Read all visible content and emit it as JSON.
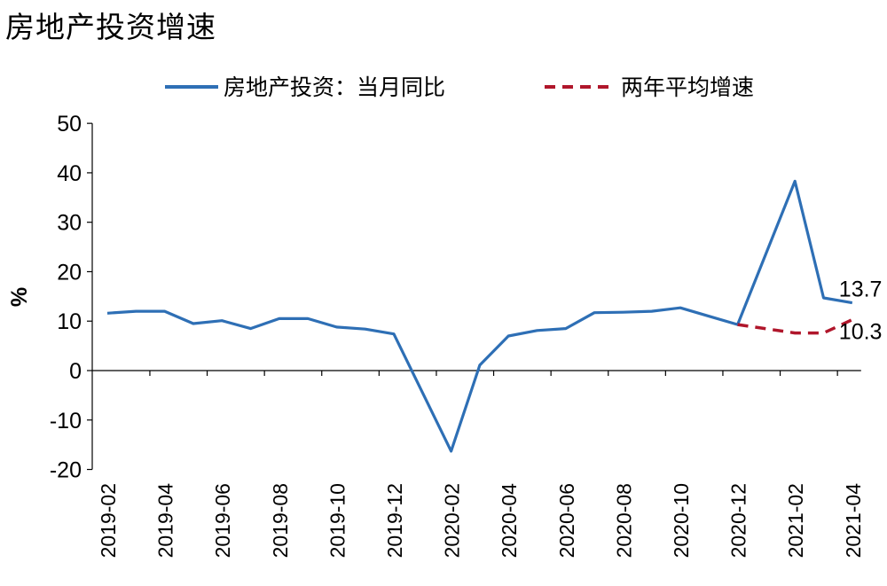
{
  "chart_data": {
    "type": "line",
    "title": "房地产投资增速",
    "ylabel": "%",
    "ylim": [
      -20,
      50
    ],
    "yticks": [
      -20,
      -10,
      0,
      10,
      20,
      30,
      40,
      50
    ],
    "x": [
      "2019-02",
      "2019-03",
      "2019-04",
      "2019-05",
      "2019-06",
      "2019-07",
      "2019-08",
      "2019-09",
      "2019-10",
      "2019-11",
      "2019-12",
      "2020-01",
      "2020-02",
      "2020-03",
      "2020-04",
      "2020-05",
      "2020-06",
      "2020-07",
      "2020-08",
      "2020-09",
      "2020-10",
      "2020-11",
      "2020-12",
      "2021-01",
      "2021-02",
      "2021-03",
      "2021-04"
    ],
    "xtick_labels": [
      "2019-02",
      "2019-04",
      "2019-06",
      "2019-08",
      "2019-10",
      "2019-12",
      "2020-02",
      "2020-04",
      "2020-06",
      "2020-08",
      "2020-10",
      "2020-12",
      "2021-02",
      "2021-04"
    ],
    "series": [
      {
        "name": "房地产投资：当月同比",
        "color": "#2e6fb5",
        "style": "solid",
        "values": [
          11.6,
          12.0,
          12.0,
          9.5,
          10.1,
          8.5,
          10.5,
          10.5,
          8.8,
          8.4,
          7.4,
          null,
          -16.3,
          1.1,
          7.0,
          8.1,
          8.5,
          11.7,
          11.8,
          12.0,
          12.7,
          11.0,
          9.3,
          null,
          38.3,
          14.7,
          13.7
        ]
      },
      {
        "name": "两年平均增速",
        "color": "#b0162b",
        "style": "dashed",
        "values": [
          null,
          null,
          null,
          null,
          null,
          null,
          null,
          null,
          null,
          null,
          null,
          null,
          null,
          null,
          null,
          null,
          null,
          null,
          null,
          null,
          null,
          null,
          9.3,
          null,
          7.6,
          7.6,
          10.3
        ]
      }
    ],
    "annotations": [
      {
        "label": "13.7",
        "series": 0,
        "index": 26
      },
      {
        "label": "10.3",
        "series": 1,
        "index": 26
      }
    ]
  }
}
